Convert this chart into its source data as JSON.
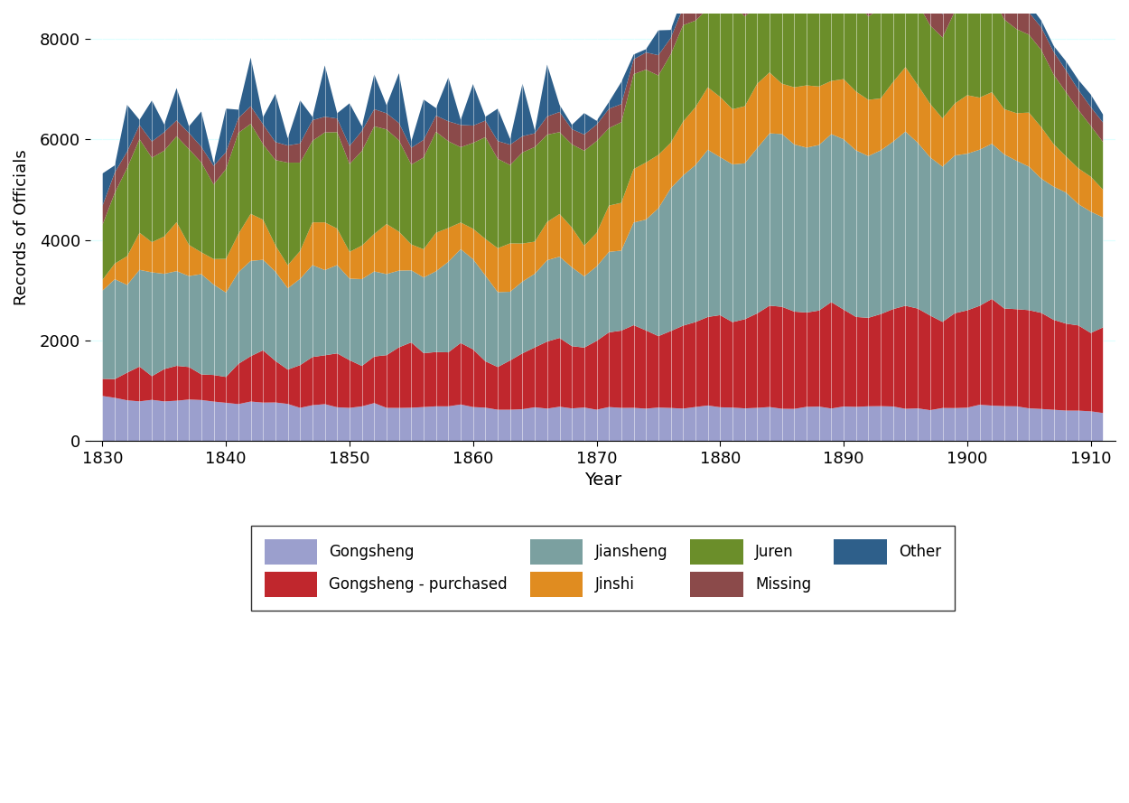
{
  "xlabel": "Year",
  "ylabel": "Records of Officials",
  "xlim": [
    1829,
    1912
  ],
  "ylim": [
    0,
    8500
  ],
  "yticks": [
    0,
    2000,
    4000,
    6000,
    8000
  ],
  "xticks": [
    1830,
    1840,
    1850,
    1860,
    1870,
    1880,
    1890,
    1900,
    1910
  ],
  "colors": {
    "Gongsheng": "#9b9fcd",
    "Gongsheng - purchased": "#c0272d",
    "Jiansheng": "#7ba0a0",
    "Jinshi": "#e08c20",
    "Juren": "#6b8e2a",
    "Missing": "#8b4a4a",
    "Other": "#2e5f8a"
  },
  "legend_labels": [
    "Gongsheng",
    "Gongsheng - purchased",
    "Jiansheng",
    "Jinshi",
    "Juren",
    "Missing",
    "Other"
  ],
  "figsize": [
    12.5,
    8.89
  ],
  "dpi": 100
}
